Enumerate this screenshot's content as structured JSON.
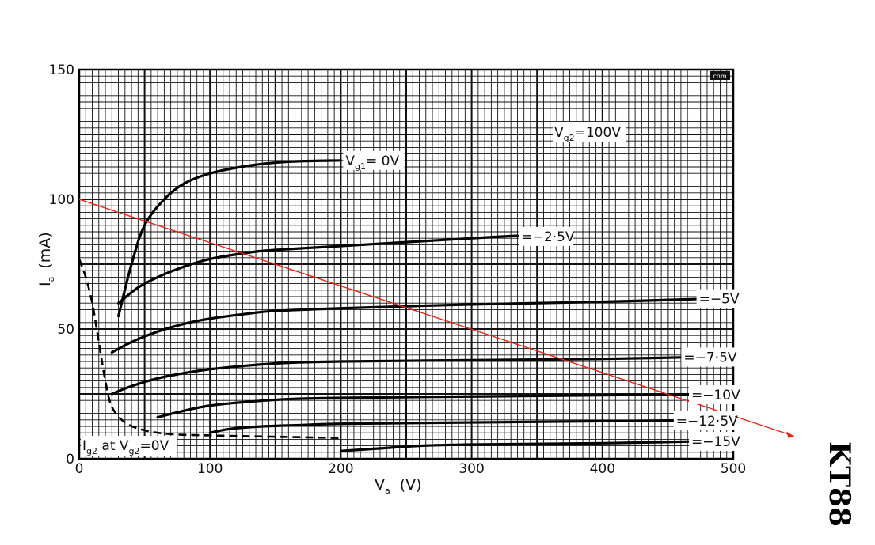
{
  "chart_data": {
    "type": "line",
    "xlabel": "V",
    "xlabel_sub": "a",
    "xlabel_unit": "(V)",
    "ylabel": "I",
    "ylabel_sub": "a",
    "ylabel_unit": "(mA)",
    "xlim": [
      0,
      500
    ],
    "ylim": [
      0,
      150
    ],
    "xticks": [
      0,
      100,
      200,
      300,
      400,
      500
    ],
    "yticks": [
      0,
      50,
      100,
      150
    ],
    "grid": true,
    "annotation_screen": {
      "prefix": "V",
      "sub": "g2",
      "suffix": "=100V"
    },
    "annotation_ig2": {
      "prefix": "I",
      "sub": "g2",
      "mid": " at V",
      "sub2": "g2",
      "suffix": "=0V"
    },
    "series": [
      {
        "name": "V_g1= 0V",
        "label_parts": {
          "prefix": "V",
          "sub": "g1",
          "suffix": "= 0V"
        },
        "x": [
          30,
          40,
          50,
          65,
          80,
          100,
          130,
          160,
          200
        ],
        "y": [
          55,
          75,
          90,
          100,
          106,
          110,
          113,
          114.5,
          115
        ]
      },
      {
        "name": "=-2·5V",
        "label_parts": {
          "prefix": "",
          "sub": "",
          "suffix": "=−2·5V"
        },
        "x": [
          30,
          45,
          60,
          80,
          100,
          130,
          150,
          200,
          250,
          300,
          335
        ],
        "y": [
          60,
          66,
          70,
          74,
          77,
          79.5,
          80.5,
          82,
          83.5,
          85,
          86
        ]
      },
      {
        "name": "=-5V",
        "label_parts": {
          "prefix": "",
          "sub": "",
          "suffix": "=−5V"
        },
        "x": [
          25,
          40,
          60,
          80,
          100,
          130,
          150,
          200,
          300,
          400,
          500
        ],
        "y": [
          41,
          45,
          49,
          52,
          54,
          56,
          57,
          58,
          59.5,
          60.5,
          62
        ]
      },
      {
        "name": "=-7·5V",
        "label_parts": {
          "prefix": "",
          "sub": "",
          "suffix": "=−7·5V"
        },
        "x": [
          25,
          40,
          60,
          80,
          100,
          130,
          160,
          200,
          300,
          400,
          500
        ],
        "y": [
          25,
          28,
          31,
          33,
          34.5,
          36,
          37,
          37.5,
          38,
          38.5,
          39.5
        ]
      },
      {
        "name": "=-10V",
        "label_parts": {
          "prefix": "",
          "sub": "",
          "suffix": "=−10V"
        },
        "x": [
          60,
          80,
          100,
          130,
          160,
          200,
          300,
          400,
          500
        ],
        "y": [
          16,
          18.5,
          20.5,
          22,
          23,
          23.5,
          24,
          24.5,
          25
        ]
      },
      {
        "name": "=-12·5V",
        "label_parts": {
          "prefix": "",
          "sub": "",
          "suffix": "=−12·5V"
        },
        "x": [
          100,
          115,
          140,
          170,
          200,
          300,
          400,
          500
        ],
        "y": [
          10,
          11.5,
          12.5,
          13,
          13.5,
          14,
          14.5,
          15
        ]
      },
      {
        "name": "=-15V",
        "label_parts": {
          "prefix": "",
          "sub": "",
          "suffix": "=−15V"
        },
        "x": [
          200,
          230,
          260,
          300,
          400,
          500
        ],
        "y": [
          3,
          4,
          5,
          5.5,
          6,
          7
        ]
      }
    ],
    "screen_current": {
      "x": [
        0,
        5,
        10,
        15,
        20,
        25,
        35,
        50,
        70,
        100,
        150,
        200
      ],
      "y": [
        77,
        70,
        60,
        45,
        30,
        20,
        14,
        11,
        9.5,
        9,
        8.5,
        8
      ]
    },
    "load_line": {
      "x": [
        0,
        545
      ],
      "y": [
        100,
        9
      ],
      "color": "#e8231a"
    },
    "tube_name": "KT88",
    "logo_text": "cnm"
  }
}
